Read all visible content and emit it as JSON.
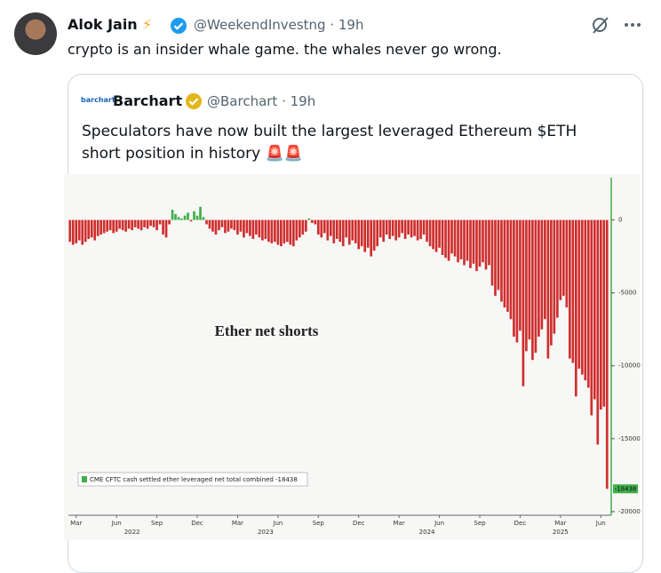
{
  "tweet": {
    "author": {
      "name": "Alok Jain",
      "badge": "⚡",
      "meta": "@WeekendInvestng · 19h"
    },
    "text": "crypto is an insider whale game. the whales never go wrong.",
    "quoted": {
      "logo_text": "barchart",
      "author": "Barchart",
      "meta": "@Barchart · 19h",
      "text": "Speculators have now built the largest leveraged Ethereum $ETH short position in history 🚨🚨"
    }
  },
  "chart_data": {
    "type": "bar",
    "annotation": "Ether net shorts",
    "categories": [
      null,
      null,
      "Mar",
      null,
      null,
      null,
      null,
      null,
      null,
      null,
      null,
      null,
      null,
      null,
      null,
      "Jun",
      null,
      null,
      null,
      null,
      null,
      null,
      null,
      null,
      null,
      null,
      null,
      null,
      "Sep",
      null,
      null,
      null,
      null,
      null,
      null,
      null,
      null,
      null,
      null,
      null,
      null,
      "Dec",
      null,
      null,
      null,
      null,
      null,
      null,
      null,
      null,
      null,
      null,
      null,
      null,
      "Mar",
      null,
      null,
      null,
      null,
      null,
      null,
      null,
      null,
      null,
      null,
      null,
      null,
      "Jun",
      null,
      null,
      null,
      null,
      null,
      null,
      null,
      null,
      null,
      null,
      null,
      null,
      "Sep",
      null,
      null,
      null,
      null,
      null,
      null,
      null,
      null,
      null,
      null,
      null,
      null,
      "Dec",
      null,
      null,
      null,
      null,
      null,
      null,
      null,
      null,
      null,
      null,
      null,
      null,
      "Mar",
      null,
      null,
      null,
      null,
      null,
      null,
      null,
      null,
      null,
      null,
      null,
      null,
      "Jun",
      null,
      null,
      null,
      null,
      null,
      null,
      null,
      null,
      null,
      null,
      null,
      null,
      "Sep",
      null,
      null,
      null,
      null,
      null,
      null,
      null,
      null,
      null,
      null,
      null,
      null,
      "Dec",
      null,
      null,
      null,
      null,
      null,
      null,
      null,
      null,
      null,
      null,
      null,
      null,
      "Mar",
      null,
      null,
      null,
      null,
      null,
      null,
      null,
      null,
      null,
      null,
      null,
      null,
      "Jun",
      null,
      null
    ],
    "x_group_labels": [
      "2022",
      "2023",
      "2024",
      "2025"
    ],
    "series": [
      {
        "name": "CME CFTC cash settled ether leveraged net total combined -18438",
        "color": "#cf2e2e",
        "positive_color": "#3fae49",
        "values": [
          -1500,
          -1700,
          -1600,
          -1400,
          -1700,
          -1500,
          -1300,
          -1200,
          -1400,
          -1100,
          -1000,
          -900,
          -800,
          -700,
          -900,
          -800,
          -600,
          -700,
          -800,
          -600,
          -700,
          -500,
          -600,
          -700,
          -500,
          -600,
          -400,
          -500,
          -700,
          -300,
          -1000,
          -1200,
          -300,
          700,
          400,
          200,
          100,
          300,
          500,
          -100,
          600,
          300,
          900,
          200,
          -300,
          -600,
          -800,
          -1000,
          -700,
          -500,
          -900,
          -800,
          -600,
          -700,
          -1000,
          -800,
          -1200,
          -900,
          -1100,
          -1300,
          -1000,
          -1200,
          -1400,
          -1300,
          -1500,
          -1600,
          -1500,
          -1700,
          -1800,
          -1600,
          -1500,
          -1700,
          -1800,
          -1400,
          -1200,
          -1000,
          -800,
          100,
          -200,
          -300,
          -1000,
          -1200,
          -900,
          -1400,
          -1100,
          -1600,
          -1300,
          -1500,
          -1800,
          -1200,
          -1700,
          -1400,
          -1600,
          -2000,
          -1800,
          -2200,
          -1900,
          -2500,
          -2100,
          -1800,
          -1200,
          -1500,
          -1000,
          -1300,
          -1100,
          -1400,
          -1200,
          -900,
          -1300,
          -1000,
          -1200,
          -1100,
          -1400,
          -1300,
          -1000,
          -1500,
          -1800,
          -2000,
          -2200,
          -1900,
          -2400,
          -2600,
          -2800,
          -2300,
          -2500,
          -2900,
          -2700,
          -3100,
          -2800,
          -3300,
          -3000,
          -3500,
          -3200,
          -2900,
          -3400,
          -3100,
          -4500,
          -5200,
          -4800,
          -5600,
          -6000,
          -6300,
          -6800,
          -8000,
          -8400,
          -7600,
          -11400,
          -9000,
          -8200,
          -9600,
          -9100,
          -8000,
          -7500,
          -6800,
          -9500,
          -8600,
          -7800,
          -6700,
          -5500,
          -5200,
          -6000,
          -9500,
          -9800,
          -12100,
          -10200,
          -10600,
          -11000,
          -11500,
          -13400,
          -12300,
          -15400,
          -13000,
          -12800,
          -18438
        ]
      }
    ],
    "ylim": [
      -20250,
      2900
    ],
    "yticks": [
      0,
      -5000,
      -10000,
      -15000,
      -20000
    ],
    "axis_color": "#3fae49",
    "grid": false
  }
}
